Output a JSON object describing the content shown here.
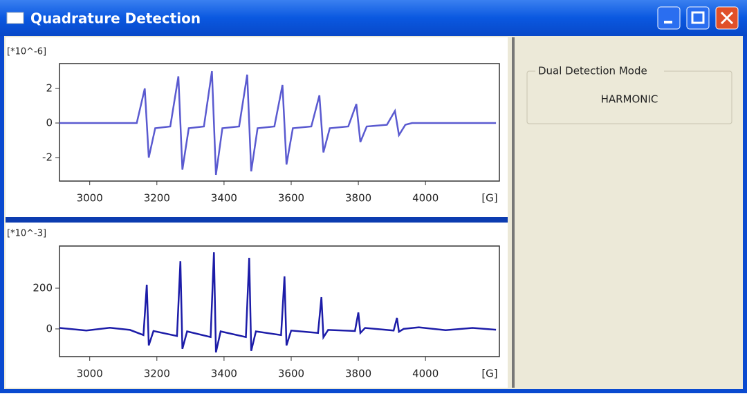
{
  "window": {
    "title": "Quadrature Detection"
  },
  "panel": {
    "group_title": "Dual Detection Mode",
    "mode": "HARMONIC"
  },
  "chart_data": [
    {
      "type": "line",
      "ylabel": "[*10^-6]",
      "xlabel": "[G]",
      "x": [
        2910,
        3140,
        3164,
        3176,
        3195,
        3240,
        3264,
        3276,
        3295,
        3340,
        3364,
        3376,
        3395,
        3445,
        3469,
        3481,
        3500,
        3550,
        3574,
        3586,
        3605,
        3660,
        3684,
        3696,
        3715,
        3770,
        3794,
        3806,
        3825,
        3885,
        3909,
        3921,
        3940,
        3960,
        4210
      ],
      "series": [
        {
          "color": "#5a5ad0",
          "values": [
            0,
            0,
            2.0,
            -2.0,
            -0.3,
            -0.2,
            2.7,
            -2.7,
            -0.3,
            -0.2,
            3.0,
            -3.0,
            -0.3,
            -0.2,
            2.8,
            -2.8,
            -0.3,
            -0.2,
            2.2,
            -2.4,
            -0.3,
            -0.2,
            1.6,
            -1.7,
            -0.3,
            -0.2,
            1.1,
            -1.1,
            -0.2,
            -0.1,
            0.7,
            -0.7,
            -0.1,
            0,
            0
          ]
        }
      ],
      "xlim": [
        2910,
        4220
      ],
      "xticks": [
        3000,
        3200,
        3400,
        3600,
        3800,
        4000
      ],
      "ylim": [
        -3.36,
        3.44
      ],
      "yticks": [
        -2,
        0,
        2
      ]
    },
    {
      "type": "line",
      "ylabel": "[*10^-3]",
      "xlabel": "[G]",
      "x": [
        2910,
        2990,
        3060,
        3120,
        3160,
        3170,
        3176,
        3190,
        3260,
        3270,
        3276,
        3290,
        3360,
        3370,
        3376,
        3390,
        3465,
        3475,
        3481,
        3495,
        3570,
        3580,
        3586,
        3600,
        3680,
        3690,
        3696,
        3710,
        3790,
        3800,
        3806,
        3820,
        3905,
        3915,
        3921,
        3935,
        3980,
        4060,
        4140,
        4210
      ],
      "series": [
        {
          "color": "#1c1ca8",
          "values": [
            5,
            -8,
            6,
            -5,
            -30,
            217,
            -81,
            -10,
            -35,
            332,
            -98,
            -12,
            -40,
            376,
            -115,
            -12,
            -40,
            349,
            -108,
            -12,
            -30,
            258,
            -81,
            -8,
            -20,
            156,
            -41,
            -5,
            -10,
            81,
            -20,
            5,
            -8,
            54,
            -14,
            0,
            8,
            -6,
            5,
            -4
          ]
        }
      ],
      "xlim": [
        2910,
        4220
      ],
      "xticks": [
        3000,
        3200,
        3400,
        3600,
        3800,
        4000
      ],
      "ylim": [
        -136,
        407
      ],
      "yticks": [
        0,
        200
      ]
    }
  ]
}
